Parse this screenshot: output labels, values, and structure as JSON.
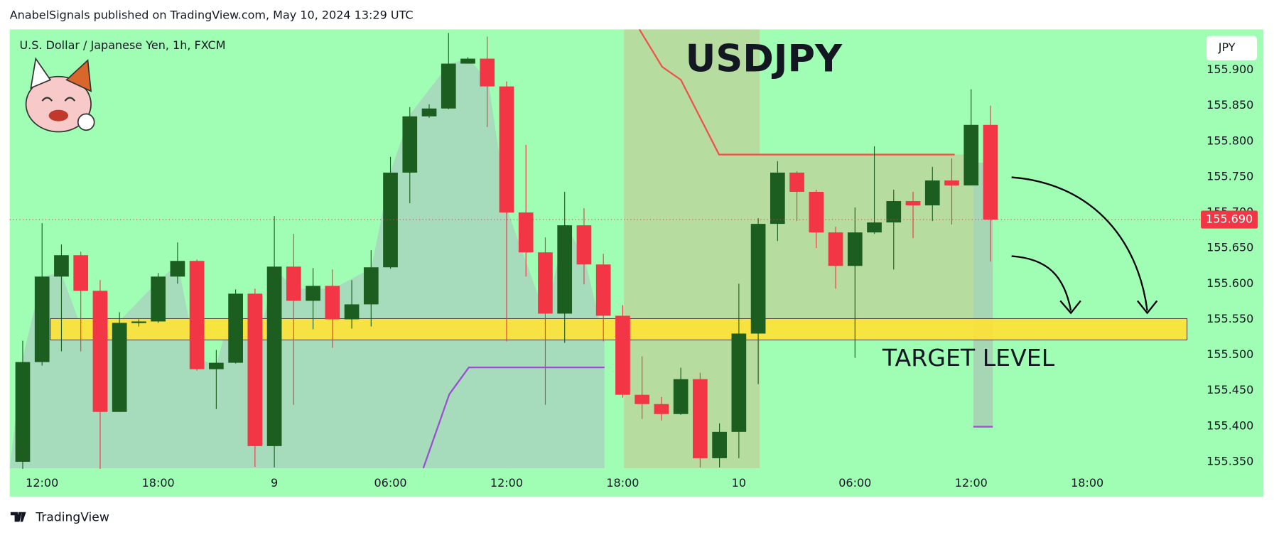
{
  "header": "AnabelSignals published on TradingView.com, May 10, 2024 13:29 UTC",
  "footer": "TradingView",
  "chart_data": {
    "type": "candlestick",
    "title": "USDJPY",
    "subtitle": "U.S. Dollar / Japanese Yen, 1h, FXCM",
    "currency": "JPY",
    "annotation": "TARGET LEVEL",
    "up_color": "#1b5e20",
    "down_color": "#f23645",
    "open": [
      155.35,
      155.49,
      155.61,
      155.64,
      155.59,
      155.42,
      155.545,
      155.547,
      155.61,
      155.632,
      155.48,
      155.489,
      155.586,
      155.372,
      155.624,
      155.576,
      155.597,
      155.55,
      155.571,
      155.623,
      155.756,
      155.835,
      155.846,
      155.909,
      155.916,
      155.877,
      155.7,
      155.644,
      155.558,
      155.682,
      155.627,
      155.555,
      155.444,
      155.431,
      155.417,
      155.466,
      155.355,
      155.392,
      155.53,
      155.684,
      155.756,
      155.729,
      155.672,
      155.625,
      155.672,
      155.686,
      155.716,
      155.71,
      155.745,
      155.738,
      155.823
    ],
    "high": [
      155.52,
      155.685,
      155.655,
      155.645,
      155.605,
      155.56,
      155.55,
      155.615,
      155.658,
      155.634,
      155.507,
      155.592,
      155.593,
      155.695,
      155.67,
      155.622,
      155.62,
      155.605,
      155.647,
      155.778,
      155.848,
      155.852,
      155.952,
      155.918,
      155.947,
      155.884,
      155.795,
      155.665,
      155.729,
      155.706,
      155.642,
      155.57,
      155.498,
      155.441,
      155.482,
      155.475,
      155.404,
      155.6,
      155.692,
      155.772,
      155.758,
      155.732,
      155.68,
      155.707,
      155.793,
      155.732,
      155.729,
      155.764,
      155.776,
      155.873,
      155.85
    ],
    "low": [
      155.34,
      155.485,
      155.505,
      155.505,
      155.34,
      155.42,
      155.54,
      155.545,
      155.6,
      155.478,
      155.424,
      155.488,
      155.343,
      155.342,
      155.43,
      155.536,
      155.51,
      155.537,
      155.54,
      155.621,
      155.713,
      155.833,
      155.845,
      155.909,
      155.82,
      155.519,
      155.61,
      155.43,
      155.517,
      155.599,
      155.519,
      155.44,
      155.41,
      155.408,
      155.416,
      155.342,
      155.342,
      155.355,
      155.459,
      155.66,
      155.688,
      155.65,
      155.593,
      155.496,
      155.67,
      155.62,
      155.664,
      155.688,
      155.683,
      155.738,
      155.631
    ],
    "close": [
      155.49,
      155.61,
      155.64,
      155.59,
      155.42,
      155.545,
      155.547,
      155.61,
      155.632,
      155.48,
      155.489,
      155.586,
      155.372,
      155.624,
      155.576,
      155.597,
      155.55,
      155.571,
      155.623,
      155.756,
      155.835,
      155.846,
      155.909,
      155.916,
      155.877,
      155.7,
      155.644,
      155.558,
      155.682,
      155.627,
      155.555,
      155.444,
      155.431,
      155.417,
      155.466,
      155.355,
      155.392,
      155.53,
      155.684,
      155.756,
      155.729,
      155.672,
      155.625,
      155.672,
      155.686,
      155.716,
      155.71,
      155.745,
      155.738,
      155.823,
      155.69
    ],
    "xlim": [
      -0.67,
      60.87
    ],
    "xticks": [
      {
        "value": 1,
        "label": "12:00"
      },
      {
        "value": 7,
        "label": "18:00"
      },
      {
        "value": 13,
        "label": "9"
      },
      {
        "value": 19,
        "label": "06:00"
      },
      {
        "value": 25,
        "label": "12:00"
      },
      {
        "value": 31,
        "label": "18:00"
      },
      {
        "value": 37,
        "label": "10"
      },
      {
        "value": 43,
        "label": "06:00"
      },
      {
        "value": 49,
        "label": "12:00"
      },
      {
        "value": 55,
        "label": "18:00"
      }
    ],
    "ylim": [
      155.341,
      155.957
    ],
    "yticks": [
      {
        "value": 155.35,
        "label": "155.350"
      },
      {
        "value": 155.4,
        "label": "155.400"
      },
      {
        "value": 155.45,
        "label": "155.450"
      },
      {
        "value": 155.5,
        "label": "155.500"
      },
      {
        "value": 155.55,
        "label": "155.550"
      },
      {
        "value": 155.6,
        "label": "155.600"
      },
      {
        "value": 155.65,
        "label": "155.650"
      },
      {
        "value": 155.7,
        "label": "155.700"
      },
      {
        "value": 155.75,
        "label": "155.750"
      },
      {
        "value": 155.8,
        "label": "155.800"
      },
      {
        "value": 155.85,
        "label": "155.850"
      },
      {
        "value": 155.9,
        "label": "155.900"
      }
    ],
    "last_price": {
      "value": 155.69,
      "label": "155.690"
    },
    "target_zone": [
      155.521,
      155.551
    ]
  }
}
